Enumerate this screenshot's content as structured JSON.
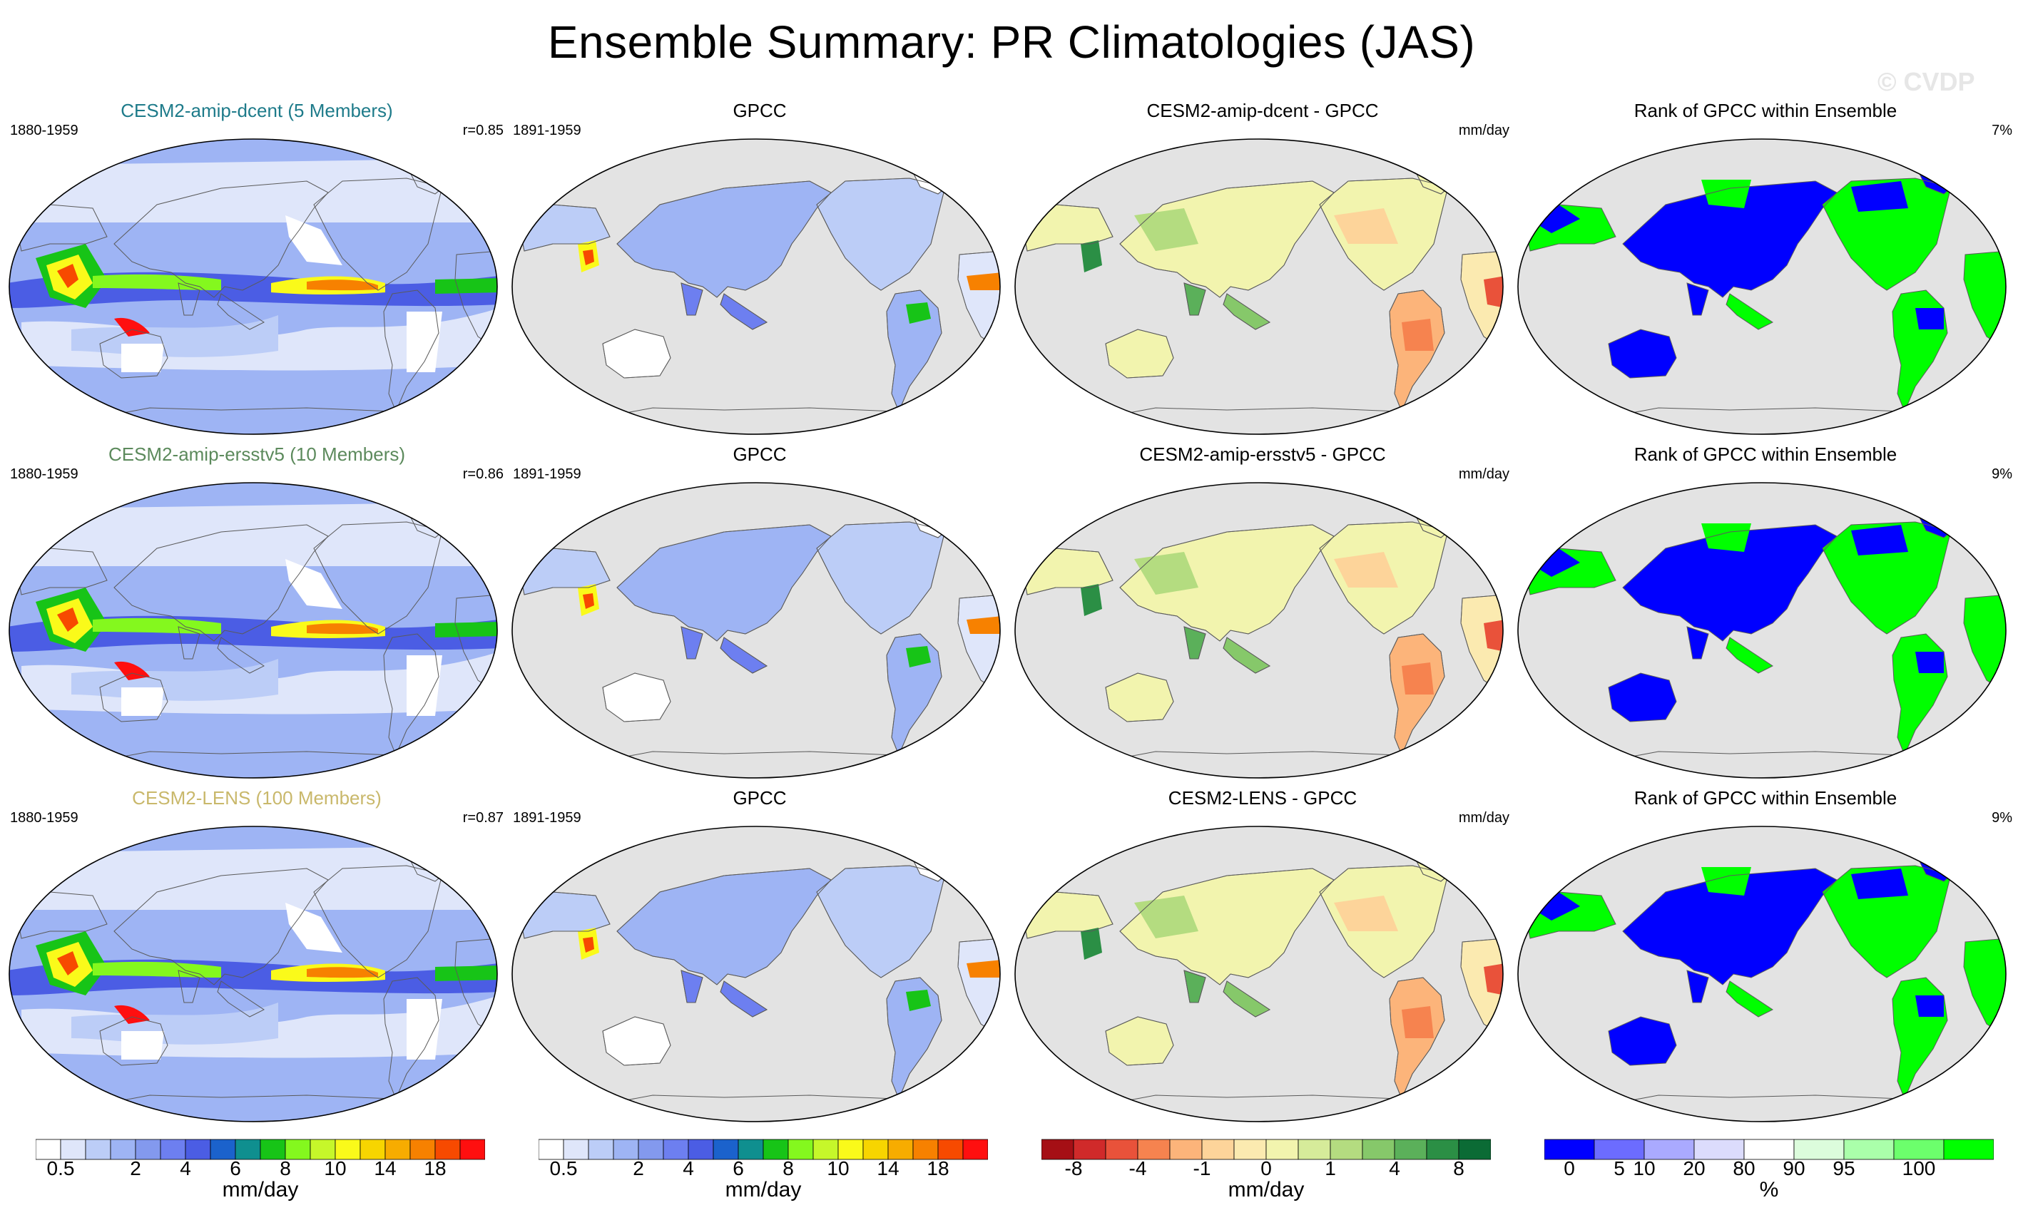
{
  "title": "Ensemble Summary: PR Climatologies (JAS)",
  "watermark": "© CVDP",
  "colors": {
    "ocean_grey": "#e3e3e3",
    "title_dcent": "#1e7b8a",
    "title_ersstv5": "#5c8a5c",
    "title_lens": "#c9b86b"
  },
  "rows": [
    {
      "model_panel": {
        "title": "CESM2-amip-dcent (5 Members)",
        "period": "1880-1959",
        "correlation": "r=0.85"
      },
      "obs_panel": {
        "title": "GPCC",
        "period": "1891-1959"
      },
      "diff_panel": {
        "title": "CESM2-amip-dcent - GPCC",
        "units": "mm/day"
      },
      "rank_panel": {
        "title": "Rank of GPCC within Ensemble",
        "percent": "7%"
      }
    },
    {
      "model_panel": {
        "title": "CESM2-amip-ersstv5 (10 Members)",
        "period": "1880-1959",
        "correlation": "r=0.86"
      },
      "obs_panel": {
        "title": "GPCC",
        "period": "1891-1959"
      },
      "diff_panel": {
        "title": "CESM2-amip-ersstv5 - GPCC",
        "units": "mm/day"
      },
      "rank_panel": {
        "title": "Rank of GPCC within Ensemble",
        "percent": "9%"
      }
    },
    {
      "model_panel": {
        "title": "CESM2-LENS (100 Members)",
        "period": "1880-1959",
        "correlation": "r=0.87"
      },
      "obs_panel": {
        "title": "GPCC",
        "period": "1891-1959"
      },
      "diff_panel": {
        "title": "CESM2-LENS - GPCC",
        "units": "mm/day"
      },
      "rank_panel": {
        "title": "Rank of GPCC within Ensemble",
        "percent": "9%"
      }
    }
  ],
  "colorbars": [
    {
      "name": "precip-model",
      "unit": "mm/day",
      "colors": [
        "#ffffff",
        "#dfe6fa",
        "#bccdf7",
        "#9eb4f4",
        "#8399ee",
        "#6d7ff0",
        "#4b5de4",
        "#1b62cc",
        "#0f8f8f",
        "#17c417",
        "#84f81e",
        "#c6f72a",
        "#fafa1a",
        "#f7d500",
        "#f7ac00",
        "#f78100",
        "#f74a00",
        "#ff0f0f"
      ],
      "tick_labels": [
        "0.5",
        "2",
        "4",
        "6",
        "8",
        "10",
        "14",
        "18"
      ],
      "tick_bounds": [
        1,
        4,
        6,
        8,
        10,
        12,
        14,
        16
      ]
    },
    {
      "name": "precip-obs",
      "unit": "mm/day",
      "colors": [
        "#ffffff",
        "#dfe6fa",
        "#bccdf7",
        "#9eb4f4",
        "#8399ee",
        "#6d7ff0",
        "#4b5de4",
        "#1b62cc",
        "#0f8f8f",
        "#17c417",
        "#84f81e",
        "#c6f72a",
        "#fafa1a",
        "#f7d500",
        "#f7ac00",
        "#f78100",
        "#f74a00",
        "#ff0f0f"
      ],
      "tick_labels": [
        "0.5",
        "2",
        "4",
        "6",
        "8",
        "10",
        "14",
        "18"
      ],
      "tick_bounds": [
        1,
        4,
        6,
        8,
        10,
        12,
        14,
        16
      ]
    },
    {
      "name": "difference",
      "unit": "mm/day",
      "colors": [
        "#a50f15",
        "#d02a2a",
        "#e9523a",
        "#f6834f",
        "#fcb47a",
        "#fdd49a",
        "#fbeab0",
        "#f2f4ae",
        "#d6eb9a",
        "#b4dc80",
        "#86c86a",
        "#5bb05a",
        "#2b8f45",
        "#0b6b35"
      ],
      "tick_labels": [
        "-8",
        "-4",
        "-1",
        "0",
        "1",
        "4",
        "8"
      ],
      "tick_bounds": [
        1,
        3,
        5,
        7,
        9,
        11,
        13
      ]
    },
    {
      "name": "rank",
      "unit": "%",
      "colors": [
        "#0000ff",
        "#6c6cff",
        "#aaaaff",
        "#dcdcfc",
        "#ffffff",
        "#dcfcdc",
        "#aaffaa",
        "#6cff6c",
        "#00ff00"
      ],
      "tick_labels": [
        "0",
        "5",
        "10",
        "20",
        "80",
        "90",
        "95",
        "100"
      ],
      "tick_bounds": [
        0.5,
        1.5,
        2,
        3,
        4,
        5,
        6,
        7.5
      ]
    }
  ]
}
